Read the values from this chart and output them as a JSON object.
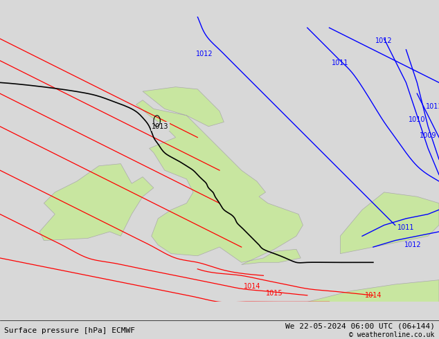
{
  "title_left": "Surface pressure [hPa] ECMWF",
  "title_right": "We 22-05-2024 06:00 UTC (06+144)",
  "copyright": "© weatheronline.co.uk",
  "bg_color": "#d8d8d8",
  "land_color": "#c8e6a0",
  "border_color": "#aaaaaa",
  "figsize": [
    6.34,
    4.9
  ],
  "dpi": 100,
  "contour_label_1013": "1013",
  "contour_label_1012_blue": "1012",
  "contour_label_1011": "1011",
  "contour_label_1010": "1010",
  "contour_label_1009": "1009",
  "contour_label_1012_right": "1012",
  "contour_label_1011_right": "1011",
  "contour_label_1014": "1014",
  "contour_label_1015": "1015",
  "contour_label_1014_br": "1014"
}
